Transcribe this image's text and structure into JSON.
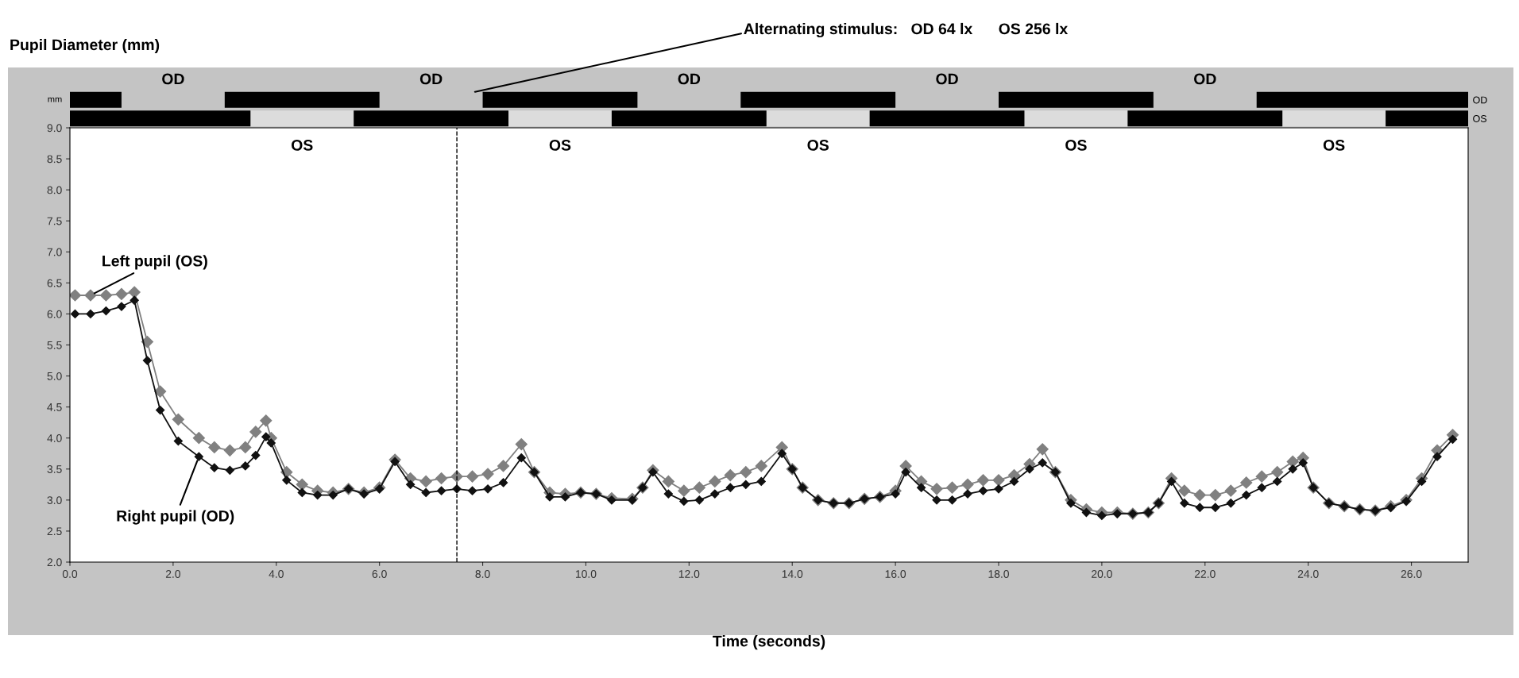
{
  "chart_data": [
    {
      "type": "bar",
      "orientation": "horizontal",
      "categories": [
        "OD",
        "OS"
      ],
      "xlim": [
        0,
        27.1
      ],
      "tick_labels": "y",
      "legend": false,
      "series": [
        {
          "color": "#000000",
          "base": [
            0,
            0
          ],
          "values": [
            1,
            3.5
          ]
        },
        {
          "color": "#000000",
          "base": [
            3,
            5.5
          ],
          "values": [
            3,
            3
          ]
        },
        {
          "color": "#000000",
          "base": [
            8,
            10.5
          ],
          "values": [
            3,
            3
          ]
        },
        {
          "color": "#000000",
          "base": [
            13,
            15.5
          ],
          "values": [
            3,
            3
          ]
        },
        {
          "color": "#000000",
          "base": [
            18,
            20.5
          ],
          "values": [
            3,
            3
          ]
        },
        {
          "color": "#000000",
          "base": [
            23,
            25.5
          ],
          "values": [
            4.1,
            1.6
          ]
        }
      ],
      "annotations": [
        "Alternating stimulus:   OD 64 lx      OS 256 lx",
        "mm",
        "OD",
        "OD",
        "OD",
        "OD",
        "OD",
        "OS",
        "OS",
        "OS",
        "OS",
        "OS"
      ]
    },
    {
      "type": "line",
      "ylabel": "Pupil Diameter (mm)",
      "xlabel": "Time (seconds)",
      "x": [
        0.1,
        0.4,
        0.7,
        1.0,
        1.25,
        1.5,
        1.75,
        2.1,
        2.5,
        2.8,
        3.1,
        3.4,
        3.6,
        3.8,
        3.9,
        4.2,
        4.5,
        4.8,
        5.1,
        5.4,
        5.7,
        6.0,
        6.3,
        6.6,
        6.9,
        7.2,
        7.5,
        7.8,
        8.1,
        8.4,
        8.75,
        9.0,
        9.3,
        9.6,
        9.9,
        10.2,
        10.5,
        10.9,
        11.1,
        11.3,
        11.6,
        11.9,
        12.2,
        12.5,
        12.8,
        13.1,
        13.4,
        13.8,
        14.0,
        14.2,
        14.5,
        14.8,
        15.1,
        15.4,
        15.7,
        16.0,
        16.2,
        16.5,
        16.8,
        17.1,
        17.4,
        17.7,
        18.0,
        18.3,
        18.6,
        18.85,
        19.1,
        19.4,
        19.7,
        20.0,
        20.3,
        20.6,
        20.9,
        21.1,
        21.35,
        21.6,
        21.9,
        22.2,
        22.5,
        22.8,
        23.1,
        23.4,
        23.7,
        23.9,
        24.1,
        24.4,
        24.7,
        25.0,
        25.3,
        25.6,
        25.9,
        26.2,
        26.5,
        26.8
      ],
      "series": [
        {
          "name": "Left pupil (OS)",
          "color": "#808080",
          "values": [
            6.3,
            6.3,
            6.3,
            6.32,
            6.35,
            5.55,
            4.75,
            4.3,
            4.0,
            3.85,
            3.8,
            3.85,
            4.1,
            4.28,
            4.0,
            3.45,
            3.25,
            3.15,
            3.12,
            3.18,
            3.12,
            3.2,
            3.65,
            3.35,
            3.3,
            3.35,
            3.38,
            3.38,
            3.42,
            3.55,
            3.9,
            3.45,
            3.12,
            3.1,
            3.12,
            3.1,
            3.03,
            3.02,
            3.2,
            3.48,
            3.3,
            3.15,
            3.2,
            3.3,
            3.4,
            3.45,
            3.55,
            3.85,
            3.5,
            3.2,
            3.0,
            2.95,
            2.95,
            3.02,
            3.05,
            3.15,
            3.55,
            3.3,
            3.18,
            3.2,
            3.25,
            3.32,
            3.32,
            3.4,
            3.58,
            3.82,
            3.45,
            3.0,
            2.85,
            2.8,
            2.8,
            2.78,
            2.8,
            2.95,
            3.35,
            3.15,
            3.08,
            3.08,
            3.15,
            3.28,
            3.38,
            3.45,
            3.62,
            3.68,
            3.2,
            2.95,
            2.9,
            2.85,
            2.83,
            2.9,
            3.0,
            3.35,
            3.8,
            4.05
          ]
        },
        {
          "name": "Right pupil (OD)",
          "color": "#111111",
          "values": [
            6.0,
            6.0,
            6.05,
            6.12,
            6.22,
            5.25,
            4.45,
            3.95,
            3.7,
            3.52,
            3.48,
            3.55,
            3.72,
            4.02,
            3.92,
            3.32,
            3.12,
            3.08,
            3.08,
            3.18,
            3.1,
            3.18,
            3.62,
            3.25,
            3.12,
            3.15,
            3.18,
            3.15,
            3.18,
            3.28,
            3.68,
            3.45,
            3.05,
            3.05,
            3.12,
            3.1,
            3.0,
            3.0,
            3.2,
            3.45,
            3.1,
            2.98,
            3.0,
            3.1,
            3.2,
            3.25,
            3.3,
            3.75,
            3.5,
            3.2,
            3.0,
            2.95,
            2.95,
            3.02,
            3.05,
            3.1,
            3.45,
            3.2,
            3.0,
            3.0,
            3.1,
            3.15,
            3.18,
            3.3,
            3.5,
            3.6,
            3.45,
            2.95,
            2.8,
            2.75,
            2.78,
            2.78,
            2.8,
            2.95,
            3.3,
            2.95,
            2.88,
            2.88,
            2.95,
            3.08,
            3.2,
            3.3,
            3.5,
            3.6,
            3.2,
            2.95,
            2.9,
            2.85,
            2.83,
            2.88,
            2.98,
            3.3,
            3.7,
            3.98
          ]
        }
      ],
      "xlim": [
        0,
        27.1
      ],
      "ylim": [
        2.0,
        9.0
      ],
      "xticks": [
        {
          "value": 0,
          "label": "0.0"
        },
        {
          "value": 2,
          "label": "2.0"
        },
        {
          "value": 4,
          "label": "4.0"
        },
        {
          "value": 6,
          "label": "6.0"
        },
        {
          "value": 8,
          "label": "8.0"
        },
        {
          "value": 10,
          "label": "10.0"
        },
        {
          "value": 12,
          "label": "12.0"
        },
        {
          "value": 14,
          "label": "14.0"
        },
        {
          "value": 16,
          "label": "16.0"
        },
        {
          "value": 18,
          "label": "18.0"
        },
        {
          "value": 20,
          "label": "20.0"
        },
        {
          "value": 22,
          "label": "22.0"
        },
        {
          "value": 24,
          "label": "24.0"
        },
        {
          "value": 26,
          "label": "26.0"
        }
      ],
      "yticks": [
        {
          "value": 2,
          "label": "2.0"
        },
        {
          "value": 2.5,
          "label": "2.5"
        },
        {
          "value": 3,
          "label": "3.0"
        },
        {
          "value": 3.5,
          "label": "3.5"
        },
        {
          "value": 4,
          "label": "4.0"
        },
        {
          "value": 4.5,
          "label": "4.5"
        },
        {
          "value": 5,
          "label": "5.0"
        },
        {
          "value": 5.5,
          "label": "5.5"
        },
        {
          "value": 6,
          "label": "6.0"
        },
        {
          "value": 6.5,
          "label": "6.5"
        },
        {
          "value": 7,
          "label": "7.0"
        },
        {
          "value": 7.5,
          "label": "7.5"
        },
        {
          "value": 8,
          "label": "8.0"
        },
        {
          "value": 8.5,
          "label": "8.5"
        },
        {
          "value": 9,
          "label": "9.0"
        }
      ],
      "marker": "diamond",
      "line_style": "solid",
      "grid": false,
      "legend": false,
      "ref_lines": [
        {
          "axis": "x",
          "value": 7.5,
          "line_style": "dashed",
          "color": "#000000"
        }
      ]
    }
  ]
}
